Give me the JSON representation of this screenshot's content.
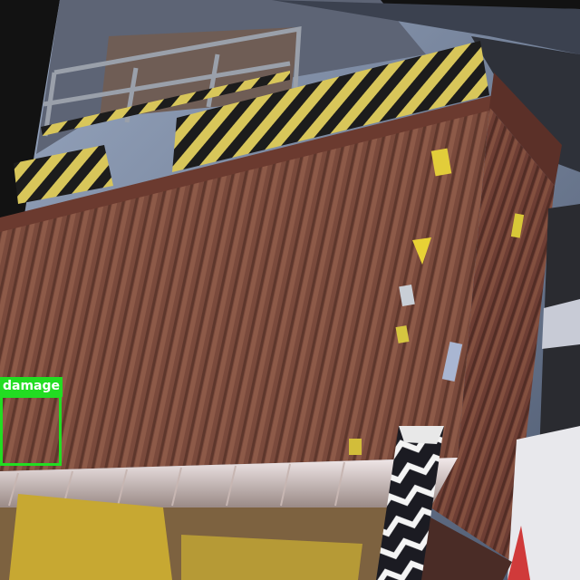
{
  "scene": {
    "description_icon": "shipping-container-photo",
    "detections": [
      {
        "label": "damage",
        "color": "#22dd22"
      }
    ]
  }
}
